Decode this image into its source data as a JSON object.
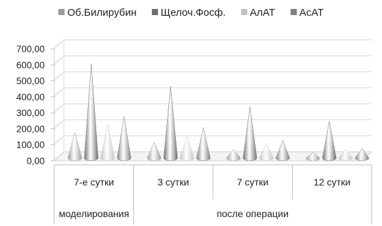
{
  "chart_data": {
    "type": "bar",
    "style": "3d-cone",
    "categories": [
      "7-е сутки",
      "3 сутки",
      "7 сутки",
      "12 сутки"
    ],
    "category_groups": [
      {
        "label": "моделирования",
        "span": [
          0,
          0
        ]
      },
      {
        "label": "после операции",
        "span": [
          1,
          3
        ]
      }
    ],
    "series": [
      {
        "name": "Об.Билирубин",
        "color": "#9a9a9a",
        "values": [
          160,
          100,
          55,
          35
        ]
      },
      {
        "name": "Щелоч.Фосф.",
        "color": "#6f6f6f",
        "values": [
          590,
          450,
          320,
          230
        ]
      },
      {
        "name": "АлАТ",
        "color": "#c4c4c4",
        "values": [
          210,
          135,
          90,
          55
        ]
      },
      {
        "name": "АсАТ",
        "color": "#7f7f7f",
        "values": [
          260,
          190,
          110,
          60
        ]
      }
    ],
    "y_ticks": [
      "0,00",
      "100,00",
      "200,00",
      "300,00",
      "400,00",
      "500,00",
      "600,00",
      "700,00"
    ],
    "ylim": [
      0,
      700
    ],
    "grid": true,
    "legend": "top"
  }
}
